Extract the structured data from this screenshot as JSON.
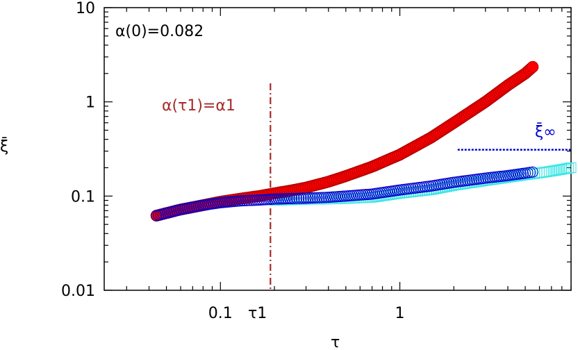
{
  "chart_data": {
    "type": "scatter",
    "xlabel": "τ",
    "ylabel": "ξ̄",
    "xscale": "log",
    "yscale": "log",
    "xlim": [
      0.0225,
      9.0
    ],
    "ylim": [
      0.01,
      10
    ],
    "x_ticks": [
      {
        "value": 0.1,
        "label": "0.1"
      },
      {
        "value": 1,
        "label": "1"
      }
    ],
    "y_ticks": [
      {
        "value": 0.01,
        "label": "0.01"
      },
      {
        "value": 0.1,
        "label": "0.1"
      },
      {
        "value": 1,
        "label": "1"
      },
      {
        "value": 10,
        "label": "10"
      }
    ],
    "grid": false,
    "annotations": {
      "alpha0": "α(0)=0.082",
      "alpha_tau1": "α(τ1)=α1",
      "tau1_tick": "τ1",
      "xi_inf": "ξ̄∞"
    },
    "vlines": [
      {
        "x": 0.19,
        "style": "dash-dot",
        "color": "#a52a2a"
      }
    ],
    "hlines": [
      {
        "y": 0.31,
        "x_from": 2.1,
        "x_to": 9.0,
        "style": "dotted",
        "color": "#0000cc"
      }
    ],
    "series": [
      {
        "marker": "filled-circle",
        "color": "#ff0000",
        "edge": "#b00000",
        "x": [
          0.044,
          0.06,
          0.08,
          0.1,
          0.13,
          0.17,
          0.2,
          0.25,
          0.3,
          0.4,
          0.5,
          0.7,
          1.0,
          1.5,
          2.0,
          3.0,
          4.0,
          5.0,
          5.5
        ],
        "y": [
          0.062,
          0.072,
          0.08,
          0.087,
          0.094,
          0.101,
          0.107,
          0.115,
          0.123,
          0.142,
          0.163,
          0.205,
          0.275,
          0.42,
          0.6,
          1.0,
          1.5,
          2.0,
          2.35
        ]
      },
      {
        "marker": "open-circle",
        "color": "#0000cc",
        "x": [
          0.044,
          0.06,
          0.08,
          0.1,
          0.13,
          0.17,
          0.2,
          0.25,
          0.3,
          0.4,
          0.5,
          0.7,
          1.0,
          1.5,
          2.0,
          3.0,
          4.0,
          5.0,
          5.5
        ],
        "y": [
          0.062,
          0.072,
          0.08,
          0.085,
          0.089,
          0.091,
          0.093,
          0.094,
          0.095,
          0.097,
          0.1,
          0.105,
          0.116,
          0.128,
          0.14,
          0.155,
          0.165,
          0.175,
          0.18
        ]
      },
      {
        "marker": "open-square",
        "color": "#3ee6e6",
        "x": [
          0.2,
          0.3,
          0.4,
          0.5,
          0.7,
          1.0,
          1.5,
          2.0,
          3.0,
          4.0,
          5.0,
          6.0,
          7.0,
          8.0,
          9.0
        ],
        "y": [
          0.09,
          0.092,
          0.093,
          0.094,
          0.097,
          0.107,
          0.117,
          0.13,
          0.146,
          0.158,
          0.168,
          0.176,
          0.184,
          0.192,
          0.2
        ]
      }
    ]
  }
}
